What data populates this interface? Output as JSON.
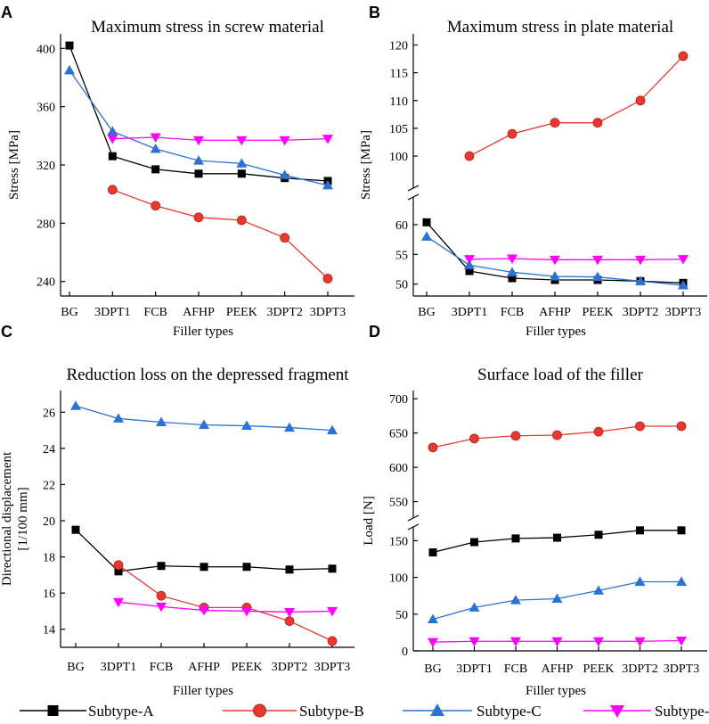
{
  "legend": [
    {
      "name": "Subtype-A",
      "color": "#000000",
      "marker": "square"
    },
    {
      "name": "Subtype-B",
      "color": "#e8382f",
      "marker": "circle"
    },
    {
      "name": "Subtype-C",
      "color": "#2b73d2",
      "marker": "triangle-up"
    },
    {
      "name": "Subtype-D",
      "color": "#ff00ff",
      "marker": "triangle-down"
    }
  ],
  "chart_data": [
    {
      "panel": "A",
      "type": "line",
      "title": "Maximum stress in screw material",
      "xlabel": "Filler types",
      "ylabel": "Stress [MPa]",
      "categories": [
        "BG",
        "3DPT1",
        "FCB",
        "AFHP",
        "PEEK",
        "3DPT2",
        "3DPT3"
      ],
      "ylim": [
        230,
        410
      ],
      "yticks": [
        240,
        280,
        320,
        360,
        400
      ],
      "series": [
        {
          "name": "Subtype-A",
          "values": [
            402,
            326,
            317,
            314,
            314,
            311,
            309
          ]
        },
        {
          "name": "Subtype-B",
          "values": [
            null,
            303,
            292,
            284,
            282,
            270,
            242
          ]
        },
        {
          "name": "Subtype-C",
          "values": [
            385,
            343,
            331,
            323,
            321,
            313,
            306
          ]
        },
        {
          "name": "Subtype-D",
          "values": [
            null,
            338,
            339,
            337,
            337,
            337,
            338
          ]
        }
      ]
    },
    {
      "panel": "B",
      "type": "line",
      "title": "Maximum stress in plate material",
      "xlabel": "Filler types",
      "ylabel": "Stress [MPa]",
      "categories": [
        "BG",
        "3DPT1",
        "FCB",
        "AFHP",
        "PEEK",
        "3DPT2",
        "3DPT3"
      ],
      "axis_break": true,
      "ylim_lower": [
        48,
        63
      ],
      "ylim_upper": [
        96,
        122
      ],
      "yticks_lower": [
        50,
        55,
        60
      ],
      "yticks_upper": [
        100,
        105,
        110,
        115,
        120
      ],
      "series": [
        {
          "name": "Subtype-A",
          "values": [
            60.4,
            52.2,
            51.0,
            50.7,
            50.7,
            50.5,
            50.2
          ]
        },
        {
          "name": "Subtype-B",
          "values": [
            null,
            100,
            104,
            106,
            106,
            110,
            118
          ]
        },
        {
          "name": "Subtype-C",
          "values": [
            58.0,
            53.2,
            52.0,
            51.3,
            51.2,
            50.5,
            49.8
          ]
        },
        {
          "name": "Subtype-D",
          "values": [
            null,
            54.2,
            54.3,
            54.1,
            54.1,
            54.1,
            54.2
          ]
        }
      ]
    },
    {
      "panel": "C",
      "type": "line",
      "title": "Reduction loss on the depressed fragment",
      "xlabel": "Filler types",
      "ylabel": "Directional displacement [1/100 mm]",
      "ylabel_lines": [
        "Directional displacement",
        "[1/100 mm]"
      ],
      "categories": [
        "BG",
        "3DPT1",
        "FCB",
        "AFHP",
        "PEEK",
        "3DPT2",
        "3DPT3"
      ],
      "ylim": [
        13,
        27.2
      ],
      "yticks": [
        14,
        16,
        18,
        20,
        22,
        24,
        26
      ],
      "series": [
        {
          "name": "Subtype-A",
          "values": [
            19.5,
            17.2,
            17.5,
            17.45,
            17.45,
            17.3,
            17.35
          ]
        },
        {
          "name": "Subtype-B",
          "values": [
            null,
            17.55,
            15.85,
            15.2,
            15.2,
            14.45,
            13.35
          ]
        },
        {
          "name": "Subtype-C",
          "values": [
            26.35,
            25.65,
            25.45,
            25.3,
            25.25,
            25.15,
            25.0
          ]
        },
        {
          "name": "Subtype-D",
          "values": [
            null,
            15.5,
            15.25,
            15.05,
            15.0,
            14.95,
            15.0
          ]
        }
      ]
    },
    {
      "panel": "D",
      "type": "line",
      "title": "Surface load of the filler",
      "xlabel": "Filler types",
      "ylabel": "Load [N]",
      "categories": [
        "BG",
        "3DPT1",
        "FCB",
        "AFHP",
        "PEEK",
        "3DPT2",
        "3DPT3"
      ],
      "axis_break": true,
      "ylim_lower": [
        0,
        165
      ],
      "ylim_upper": [
        530,
        712
      ],
      "yticks_lower": [
        0,
        50,
        100,
        150
      ],
      "yticks_upper": [
        550,
        600,
        650,
        700
      ],
      "series": [
        {
          "name": "Subtype-A",
          "values": [
            134,
            148,
            153,
            154,
            158,
            164,
            164
          ]
        },
        {
          "name": "Subtype-B",
          "values": [
            629,
            642,
            646,
            647,
            652,
            660,
            660
          ]
        },
        {
          "name": "Subtype-C",
          "values": [
            43,
            59,
            69,
            71,
            82,
            94,
            94
          ]
        },
        {
          "name": "Subtype-D",
          "values": [
            12,
            13,
            13,
            13,
            13,
            13,
            14
          ]
        }
      ]
    }
  ]
}
